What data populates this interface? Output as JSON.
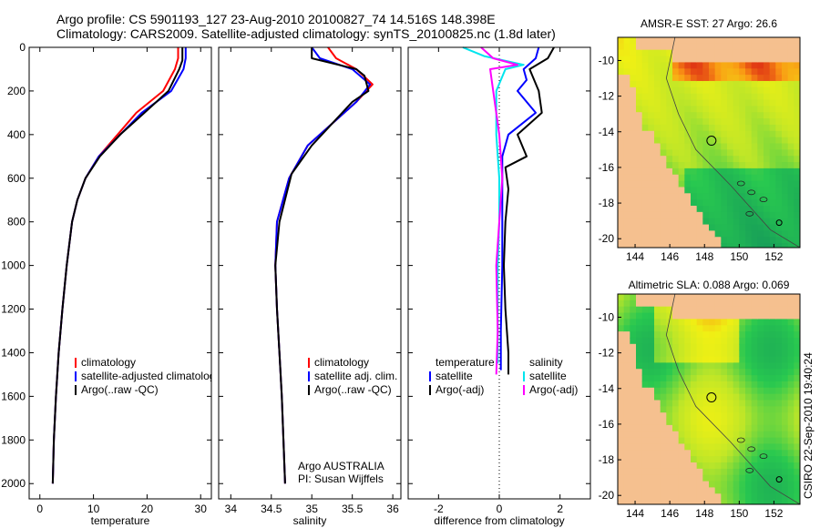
{
  "header": {
    "line1": "Argo profile: CS 5901193_127 23-Aug-2010 20100827_74 14.516S 148.398E",
    "line2": "Climatology: CARS2009. Satellite-adjusted climatology: synTS_20100825.nc (1.8d later)"
  },
  "footer_vertical": "CSIRO 22-Sep-2010 19:40:24",
  "colors": {
    "clim": "#ff0000",
    "sat": "#0000ff",
    "argo": "#000000",
    "cyan": "#00e5ee",
    "magenta": "#ff00ff",
    "land": "#f5c08f",
    "coast": "#222222"
  },
  "chart_data": [
    {
      "type": "line",
      "id": "temperature",
      "xlabel": "temperature",
      "xticks": [
        0,
        10,
        20,
        30
      ],
      "xlim": [
        -2,
        32
      ],
      "ylim": [
        0,
        2070
      ],
      "yticks": [
        0,
        200,
        400,
        600,
        800,
        1000,
        1200,
        1400,
        1600,
        1800,
        2000
      ],
      "series": [
        {
          "name": "climatology",
          "color": "#ff0000",
          "points": [
            [
              25.8,
              0
            ],
            [
              25.8,
              50
            ],
            [
              25.2,
              100
            ],
            [
              23,
              200
            ],
            [
              18,
              300
            ],
            [
              14.5,
              400
            ],
            [
              11,
              500
            ],
            [
              8.5,
              600
            ],
            [
              7,
              700
            ],
            [
              6,
              800
            ],
            [
              5,
              1000
            ],
            [
              4.2,
              1200
            ],
            [
              3.5,
              1400
            ],
            [
              3,
              1600
            ],
            [
              2.6,
              1800
            ],
            [
              2.4,
              2000
            ]
          ]
        },
        {
          "name": "satellite-adjusted climatology",
          "color": "#0000ff",
          "points": [
            [
              27.2,
              0
            ],
            [
              27.2,
              50
            ],
            [
              26.8,
              100
            ],
            [
              24.5,
              200
            ],
            [
              19,
              300
            ],
            [
              15,
              400
            ],
            [
              11,
              500
            ],
            [
              8.5,
              600
            ],
            [
              7,
              700
            ],
            [
              6,
              800
            ],
            [
              5,
              1000
            ],
            [
              4.2,
              1200
            ],
            [
              3.5,
              1400
            ],
            [
              3,
              1600
            ],
            [
              2.6,
              1800
            ],
            [
              2.4,
              2000
            ]
          ]
        },
        {
          "name": "Argo(..raw -QC)",
          "color": "#000000",
          "points": [
            [
              26.6,
              0
            ],
            [
              26.6,
              60
            ],
            [
              26,
              100
            ],
            [
              24,
              200
            ],
            [
              19.5,
              300
            ],
            [
              15,
              400
            ],
            [
              11.2,
              500
            ],
            [
              8.5,
              600
            ],
            [
              7,
              700
            ],
            [
              6,
              800
            ],
            [
              5,
              1000
            ],
            [
              4.2,
              1200
            ],
            [
              3.5,
              1400
            ],
            [
              3,
              1600
            ],
            [
              2.6,
              1800
            ],
            [
              2.4,
              2000
            ]
          ]
        }
      ],
      "legend": [
        "climatology",
        "satellite-adjusted climatology",
        "Argo(..raw -QC)"
      ]
    },
    {
      "type": "line",
      "id": "salinity",
      "xlabel": "salinity",
      "xticks": [
        34,
        34.5,
        35,
        35.5,
        36
      ],
      "xlim": [
        33.85,
        36.1
      ],
      "ylim": [
        0,
        2070
      ],
      "yticks": [
        0,
        200,
        400,
        600,
        800,
        1000,
        1200,
        1400,
        1600,
        1800,
        2000
      ],
      "series": [
        {
          "name": "climatology",
          "color": "#ff0000",
          "points": [
            [
              35.2,
              0
            ],
            [
              35.3,
              50
            ],
            [
              35.55,
              100
            ],
            [
              35.75,
              170
            ],
            [
              35.55,
              250
            ],
            [
              35.25,
              350
            ],
            [
              34.95,
              450
            ],
            [
              34.72,
              600
            ],
            [
              34.57,
              800
            ],
            [
              34.55,
              1000
            ],
            [
              34.57,
              1200
            ],
            [
              34.6,
              1400
            ],
            [
              34.63,
              1600
            ],
            [
              34.65,
              1800
            ],
            [
              34.67,
              2000
            ]
          ]
        },
        {
          "name": "satellite adj. clim.",
          "color": "#0000ff",
          "points": [
            [
              35,
              0
            ],
            [
              35.1,
              50
            ],
            [
              35.5,
              100
            ],
            [
              35.72,
              170
            ],
            [
              35.55,
              250
            ],
            [
              35.25,
              350
            ],
            [
              34.95,
              450
            ],
            [
              34.72,
              600
            ],
            [
              34.57,
              800
            ],
            [
              34.55,
              1000
            ],
            [
              34.57,
              1200
            ],
            [
              34.6,
              1400
            ],
            [
              34.63,
              1600
            ],
            [
              34.65,
              1800
            ],
            [
              34.67,
              2000
            ]
          ]
        },
        {
          "name": "Argo(..raw -QC)",
          "color": "#000000",
          "points": [
            [
              35,
              0
            ],
            [
              35,
              50
            ],
            [
              35.55,
              100
            ],
            [
              35.65,
              130
            ],
            [
              35.7,
              200
            ],
            [
              35.5,
              250
            ],
            [
              35.3,
              330
            ],
            [
              35,
              450
            ],
            [
              34.75,
              580
            ],
            [
              34.6,
              800
            ],
            [
              34.55,
              1000
            ],
            [
              34.57,
              1200
            ],
            [
              34.6,
              1400
            ],
            [
              34.63,
              1600
            ],
            [
              34.65,
              1800
            ],
            [
              34.67,
              2000
            ]
          ]
        }
      ],
      "legend": [
        "climatology",
        "satellite adj. clim.",
        "Argo(..raw -QC)"
      ],
      "annotation": [
        "Argo AUSTRALIA",
        "PI: Susan Wijffels"
      ]
    },
    {
      "type": "line",
      "id": "difference",
      "xlabel": "difference from climatology",
      "xticks": [
        -2,
        0,
        2
      ],
      "xlim": [
        -3,
        3
      ],
      "ylim": [
        0,
        2070
      ],
      "yticks": [
        0,
        200,
        400,
        600,
        800,
        1000,
        1200,
        1400,
        1600,
        1800,
        2000
      ],
      "series": [
        {
          "name": "temperature satellite",
          "color": "#0000ff",
          "points": [
            [
              1.3,
              0
            ],
            [
              1.2,
              50
            ],
            [
              0.8,
              100
            ],
            [
              0.9,
              150
            ],
            [
              0.6,
              200
            ],
            [
              1.2,
              300
            ],
            [
              0.3,
              400
            ],
            [
              0.1,
              500
            ],
            [
              0.1,
              700
            ],
            [
              0.1,
              1000
            ],
            [
              0.05,
              1300
            ],
            [
              0.05,
              1480
            ]
          ]
        },
        {
          "name": "temperature Argo(-adj)",
          "color": "#000000",
          "points": [
            [
              1.8,
              0
            ],
            [
              1.6,
              50
            ],
            [
              1.0,
              100
            ],
            [
              1.3,
              200
            ],
            [
              1.4,
              300
            ],
            [
              0.6,
              400
            ],
            [
              0.9,
              500
            ],
            [
              0.2,
              550
            ],
            [
              0.3,
              650
            ],
            [
              0.2,
              800
            ],
            [
              0.15,
              1000
            ],
            [
              0.2,
              1200
            ],
            [
              0.3,
              1400
            ],
            [
              0.3,
              1500
            ]
          ]
        },
        {
          "name": "salinity satellite",
          "color": "#00e5ee",
          "points": [
            [
              -1.2,
              0
            ],
            [
              -0.5,
              40
            ],
            [
              0.8,
              80
            ],
            [
              0.2,
              100
            ],
            [
              -0.1,
              200
            ],
            [
              -0.1,
              400
            ],
            [
              0,
              600
            ],
            [
              0,
              800
            ],
            [
              -0.05,
              1000
            ],
            [
              -0.05,
              1300
            ],
            [
              -0.05,
              1450
            ]
          ]
        },
        {
          "name": "salinity Argo(-adj)",
          "color": "#ff00ff",
          "points": [
            [
              -0.6,
              0
            ],
            [
              -0.2,
              50
            ],
            [
              0.6,
              80
            ],
            [
              -0.3,
              100
            ],
            [
              -0.2,
              200
            ],
            [
              0,
              400
            ],
            [
              0.1,
              600
            ],
            [
              0,
              800
            ],
            [
              -0.1,
              1000
            ],
            [
              -0.05,
              1300
            ],
            [
              -0.1,
              1500
            ]
          ]
        }
      ],
      "legend_temperature": [
        "temperature",
        "satellite",
        "Argo(-adj)"
      ],
      "legend_salinity": [
        "salinity",
        "satellite",
        "Argo(-adj)"
      ]
    },
    {
      "type": "heatmap",
      "id": "sst-map",
      "title": "AMSR-E SST: 27 Argo: 26.6",
      "xticks": [
        144,
        146,
        148,
        150,
        152
      ],
      "yticks": [
        -10,
        -12,
        -14,
        -16,
        -18,
        -20
      ],
      "xlim": [
        143,
        153.5
      ],
      "ylim": [
        -20.5,
        -8.7
      ],
      "marker_circles": [
        [
          148.4,
          -14.5
        ],
        [
          152.3,
          -19.1
        ]
      ]
    },
    {
      "type": "heatmap",
      "id": "sla-map",
      "title": "Altimetric SLA: 0.088 Argo: 0.069",
      "xticks": [
        144,
        146,
        148,
        150,
        152
      ],
      "yticks": [
        -10,
        -12,
        -14,
        -16,
        -18,
        -20
      ],
      "xlim": [
        143,
        153.5
      ],
      "ylim": [
        -20.5,
        -8.7
      ],
      "marker_circles": [
        [
          148.4,
          -14.5
        ],
        [
          152.3,
          -19.1
        ]
      ]
    }
  ]
}
